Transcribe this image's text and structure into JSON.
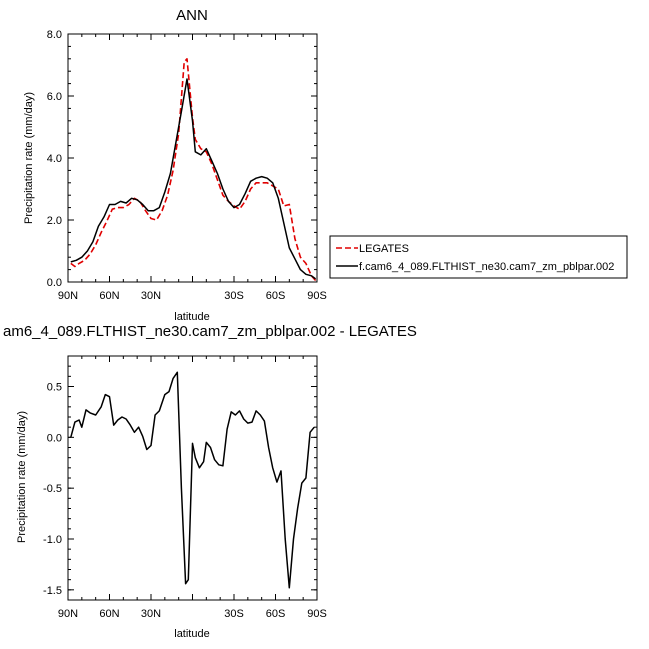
{
  "chart_data": [
    {
      "type": "line",
      "title": "ANN",
      "xlabel": "latitude",
      "ylabel": "Precipitation rate (mm/day)",
      "xlim": [
        90,
        -90
      ],
      "ylim": [
        0,
        8
      ],
      "x_ticks": [
        90,
        60,
        30,
        0,
        -30,
        -60,
        -90
      ],
      "x_tick_labels": [
        "90N",
        "60N",
        "30N",
        "",
        "30S",
        "60S",
        "90S"
      ],
      "y_ticks": [
        0,
        2,
        4,
        6,
        8
      ],
      "y_tick_labels": [
        "0.0",
        "2.0",
        "4.0",
        "6.0",
        "8.0"
      ],
      "legend_position": "right, outside plot",
      "series": [
        {
          "name": "LEGATES",
          "color": "#e00000",
          "dash": "dashed",
          "x": [
            88,
            85,
            82,
            78,
            74,
            70,
            66,
            62,
            58,
            54,
            50,
            46,
            42,
            38,
            34,
            30,
            26,
            22,
            18,
            14,
            10,
            6,
            4,
            0,
            -2,
            -6,
            -10,
            -14,
            -18,
            -22,
            -26,
            -30,
            -34,
            -38,
            -42,
            -46,
            -50,
            -54,
            -58,
            -62,
            -66,
            -70,
            -74,
            -78,
            -82,
            -86,
            -89
          ],
          "values": [
            0.6,
            0.5,
            0.6,
            0.7,
            0.9,
            1.2,
            1.6,
            1.95,
            2.35,
            2.4,
            2.4,
            2.5,
            2.7,
            2.6,
            2.3,
            2.05,
            2.0,
            2.3,
            2.8,
            3.6,
            4.8,
            7.1,
            7.2,
            5.3,
            4.6,
            4.3,
            4.2,
            3.8,
            3.3,
            2.8,
            2.6,
            2.45,
            2.35,
            2.6,
            3.0,
            3.2,
            3.2,
            3.2,
            3.1,
            3.0,
            2.45,
            2.5,
            1.4,
            0.8,
            0.6,
            0.2,
            0.05
          ]
        },
        {
          "name": "f.cam6_4_089.FLTHIST_ne30.cam7_zm_pblpar.002",
          "color": "#000000",
          "dash": "solid",
          "x": [
            88,
            84,
            80,
            76,
            72,
            68,
            64,
            60,
            56,
            52,
            48,
            44,
            40,
            36,
            32,
            28,
            24,
            20,
            16,
            12,
            8,
            4,
            0,
            -2,
            -6,
            -10,
            -14,
            -18,
            -22,
            -26,
            -30,
            -34,
            -38,
            -42,
            -46,
            -50,
            -54,
            -58,
            -62,
            -66,
            -70,
            -74,
            -78,
            -82,
            -86,
            -89
          ],
          "values": [
            0.65,
            0.7,
            0.8,
            1.0,
            1.3,
            1.8,
            2.1,
            2.5,
            2.5,
            2.6,
            2.55,
            2.7,
            2.65,
            2.5,
            2.3,
            2.3,
            2.4,
            2.9,
            3.5,
            4.5,
            5.5,
            6.55,
            5.2,
            4.2,
            4.1,
            4.3,
            3.9,
            3.5,
            3.0,
            2.6,
            2.4,
            2.5,
            2.85,
            3.25,
            3.35,
            3.4,
            3.35,
            3.2,
            2.7,
            1.9,
            1.1,
            0.75,
            0.4,
            0.25,
            0.2,
            0.1
          ]
        }
      ]
    },
    {
      "type": "line",
      "title": "am6_4_089.FLTHIST_ne30.cam7_zm_pblpar.002 - LEGATES",
      "xlabel": "latitude",
      "ylabel": "Precipitation rate (mm/day)",
      "xlim": [
        90,
        -90
      ],
      "ylim": [
        -1.6,
        0.8
      ],
      "x_ticks": [
        90,
        60,
        30,
        0,
        -30,
        -60,
        -90
      ],
      "x_tick_labels": [
        "90N",
        "60N",
        "30N",
        "",
        "30S",
        "60S",
        "90S"
      ],
      "y_ticks": [
        -1.5,
        -1.0,
        -0.5,
        0.0,
        0.5
      ],
      "y_tick_labels": [
        "-1.5",
        "-1.0",
        "-0.5",
        "0.0",
        "0.5"
      ],
      "series": [
        {
          "color": "#000000",
          "dash": "solid",
          "x": [
            88,
            85,
            82,
            80,
            77,
            74,
            70,
            66,
            63,
            60,
            57,
            54,
            51,
            48,
            45,
            42,
            39,
            36,
            33,
            30,
            27,
            24,
            20,
            17,
            14,
            11,
            8,
            5,
            3,
            0,
            -2,
            -5,
            -8,
            -10,
            -13,
            -16,
            -19,
            -22,
            -25,
            -28,
            -31,
            -34,
            -37,
            -40,
            -43,
            -46,
            -49,
            -52,
            -55,
            -58,
            -61,
            -64,
            -67,
            -70,
            -73,
            -76,
            -79,
            -82,
            -85,
            -88
          ],
          "values": [
            0.0,
            0.15,
            0.17,
            0.1,
            0.27,
            0.24,
            0.22,
            0.3,
            0.42,
            0.4,
            0.12,
            0.17,
            0.2,
            0.18,
            0.12,
            0.05,
            0.1,
            0.01,
            -0.12,
            -0.08,
            0.22,
            0.26,
            0.42,
            0.45,
            0.58,
            0.64,
            -0.5,
            -1.44,
            -1.4,
            -0.06,
            -0.2,
            -0.3,
            -0.24,
            -0.05,
            -0.1,
            -0.22,
            -0.27,
            -0.28,
            0.08,
            0.25,
            0.22,
            0.26,
            0.18,
            0.14,
            0.15,
            0.26,
            0.22,
            0.16,
            -0.1,
            -0.3,
            -0.44,
            -0.33,
            -1.0,
            -1.48,
            -1.0,
            -0.7,
            -0.45,
            -0.4,
            0.05,
            0.1
          ]
        }
      ]
    }
  ]
}
